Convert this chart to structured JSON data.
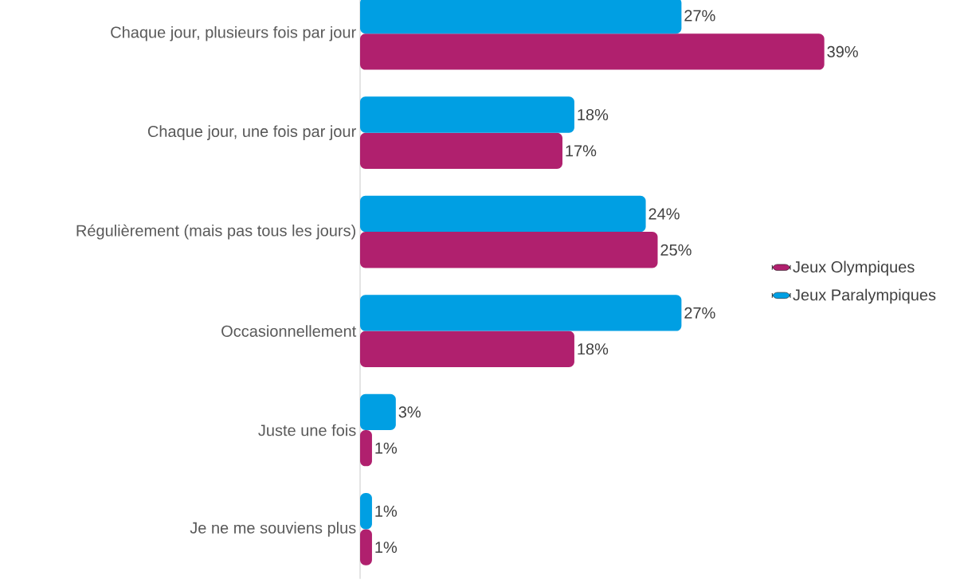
{
  "chart_data": {
    "type": "bar",
    "orientation": "horizontal",
    "categories": [
      "Chaque jour, plusieurs fois par jour",
      "Chaque jour, une fois par jour",
      "Régulièrement (mais pas tous les jours)",
      "Occasionnellement",
      "Juste une fois",
      "Je ne me souviens plus"
    ],
    "series": [
      {
        "name": "Jeux Olympiques",
        "color": "#b0206e",
        "values": [
          39,
          17,
          25,
          18,
          1,
          1
        ],
        "value_labels": [
          "39%",
          "17%",
          "25%",
          "18%",
          "1%",
          "1%"
        ]
      },
      {
        "name": "Jeux Paralympiques",
        "color": "#009fe3",
        "values": [
          27,
          18,
          24,
          27,
          3,
          1
        ],
        "value_labels": [
          "27%",
          "18%",
          "24%",
          "27%",
          "3%",
          "1%"
        ]
      }
    ],
    "legend": "right"
  }
}
